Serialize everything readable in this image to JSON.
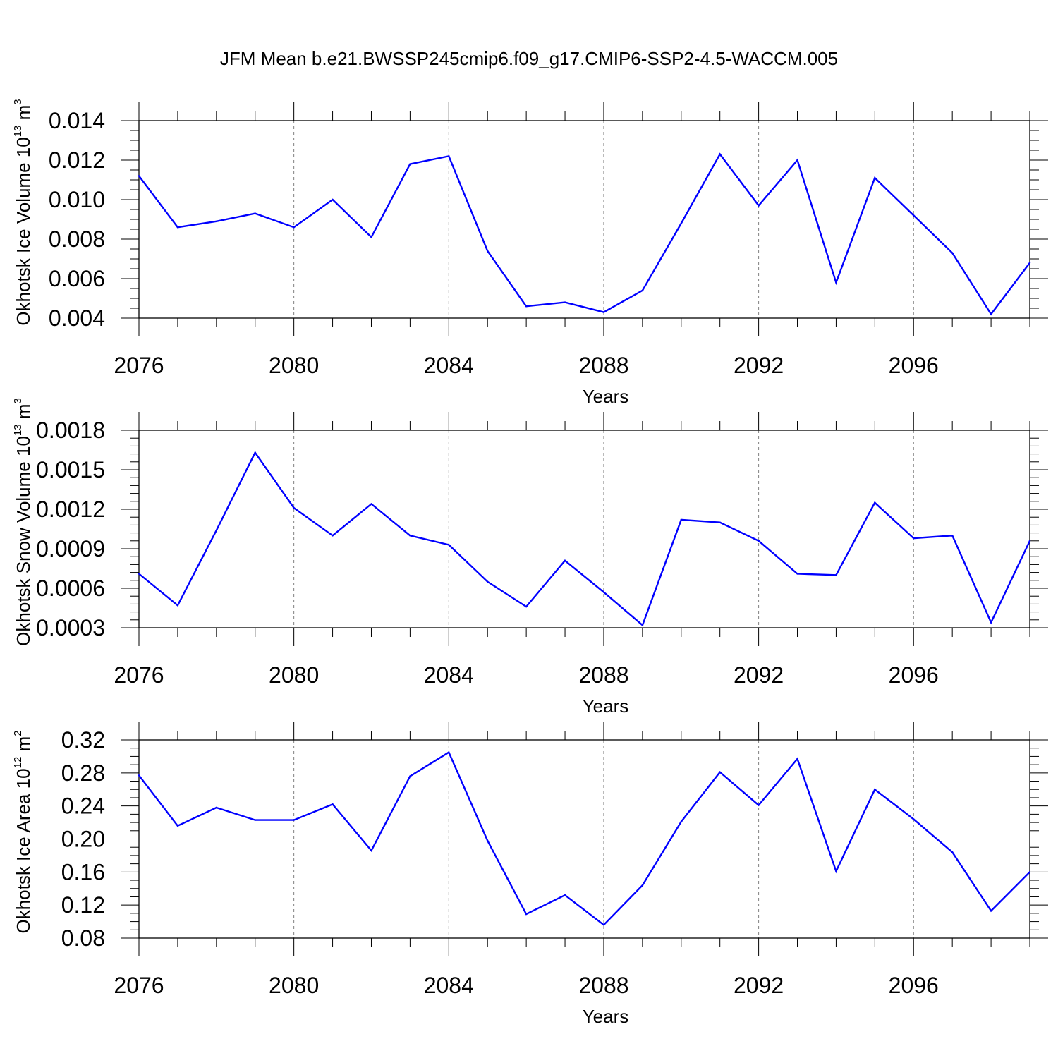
{
  "title": "JFM Mean b.e21.BWSSP245cmip6.f09_g17.CMIP6-SSP2-4.5-WACCM.005",
  "colors": {
    "line": "#0000ff",
    "axis": "#000000",
    "grid": "#808080"
  },
  "chart_data": [
    {
      "type": "line",
      "xlabel": "Years",
      "ylabel": "Okhotsk Ice Volume 10",
      "ylabel_exp": "13",
      "ylabel_unit": "m",
      "ylabel_unit_exp": "3",
      "xlim": [
        2076,
        2099
      ],
      "ylim": [
        0.004,
        0.014
      ],
      "xticks": [
        "2076",
        "2080",
        "2084",
        "2088",
        "2092",
        "2096"
      ],
      "yticks": [
        "0.004",
        "0.006",
        "0.008",
        "0.010",
        "0.012",
        "0.014"
      ],
      "grid": "vertical dashed at major x ticks",
      "x": [
        2076,
        2077,
        2078,
        2079,
        2080,
        2081,
        2082,
        2083,
        2084,
        2085,
        2086,
        2087,
        2088,
        2089,
        2090,
        2091,
        2092,
        2093,
        2094,
        2095,
        2096,
        2097,
        2098,
        2099
      ],
      "series": [
        {
          "values": [
            0.0112,
            0.0086,
            0.0089,
            0.0093,
            0.0086,
            0.01,
            0.0081,
            0.0118,
            0.0122,
            0.0074,
            0.0046,
            0.0048,
            0.0043,
            0.0054,
            0.0088,
            0.0123,
            0.0097,
            0.012,
            0.0058,
            0.0111,
            0.0092,
            0.0073,
            0.0042,
            0.0068
          ]
        }
      ]
    },
    {
      "type": "line",
      "xlabel": "Years",
      "ylabel": "Okhotsk Snow Volume 10",
      "ylabel_exp": "13",
      "ylabel_unit": "m",
      "ylabel_unit_exp": "3",
      "xlim": [
        2076,
        2099
      ],
      "ylim": [
        0.0003,
        0.0018
      ],
      "xticks": [
        "2076",
        "2080",
        "2084",
        "2088",
        "2092",
        "2096"
      ],
      "yticks": [
        "0.0003",
        "0.0006",
        "0.0009",
        "0.0012",
        "0.0015",
        "0.0018"
      ],
      "grid": "vertical dashed at major x ticks",
      "x": [
        2076,
        2077,
        2078,
        2079,
        2080,
        2081,
        2082,
        2083,
        2084,
        2085,
        2086,
        2087,
        2088,
        2089,
        2090,
        2091,
        2092,
        2093,
        2094,
        2095,
        2096,
        2097,
        2098,
        2099
      ],
      "series": [
        {
          "values": [
            0.00071,
            0.00047,
            0.00104,
            0.00163,
            0.00121,
            0.001,
            0.00124,
            0.001,
            0.00093,
            0.00065,
            0.00046,
            0.00081,
            0.00057,
            0.00032,
            0.00112,
            0.0011,
            0.00096,
            0.00071,
            0.0007,
            0.00125,
            0.00098,
            0.001,
            0.00034,
            0.00096
          ]
        }
      ]
    },
    {
      "type": "line",
      "xlabel": "Years",
      "ylabel": "Okhotsk Ice Area 10",
      "ylabel_exp": "12",
      "ylabel_unit": "m",
      "ylabel_unit_exp": "2",
      "xlim": [
        2076,
        2099
      ],
      "ylim": [
        0.08,
        0.32
      ],
      "xticks": [
        "2076",
        "2080",
        "2084",
        "2088",
        "2092",
        "2096"
      ],
      "yticks": [
        "0.08",
        "0.12",
        "0.16",
        "0.20",
        "0.24",
        "0.28",
        "0.32"
      ],
      "grid": "vertical dashed at major x ticks",
      "x": [
        2076,
        2077,
        2078,
        2079,
        2080,
        2081,
        2082,
        2083,
        2084,
        2085,
        2086,
        2087,
        2088,
        2089,
        2090,
        2091,
        2092,
        2093,
        2094,
        2095,
        2096,
        2097,
        2098,
        2099
      ],
      "series": [
        {
          "values": [
            0.277,
            0.216,
            0.238,
            0.223,
            0.223,
            0.242,
            0.186,
            0.276,
            0.305,
            0.198,
            0.109,
            0.132,
            0.096,
            0.144,
            0.221,
            0.281,
            0.241,
            0.297,
            0.161,
            0.26,
            0.224,
            0.184,
            0.113,
            0.16
          ]
        }
      ]
    }
  ]
}
